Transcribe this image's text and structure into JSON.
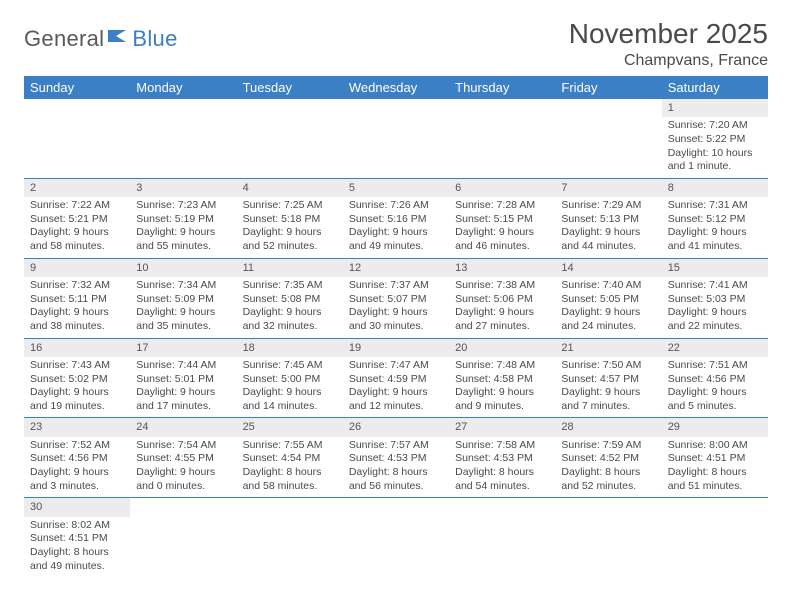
{
  "logo": {
    "part1": "General",
    "part2": "Blue"
  },
  "title": "November 2025",
  "location": "Champvans, France",
  "colors": {
    "header_bg": "#3b7fc4",
    "header_text": "#ffffff",
    "daynum_bg": "#ececec",
    "text": "#4a4a4a",
    "rule": "#3b7fc4"
  },
  "weekdays": [
    "Sunday",
    "Monday",
    "Tuesday",
    "Wednesday",
    "Thursday",
    "Friday",
    "Saturday"
  ],
  "weeks": [
    [
      null,
      null,
      null,
      null,
      null,
      null,
      {
        "n": "1",
        "sr": "7:20 AM",
        "ss": "5:22 PM",
        "dl": "10 hours and 1 minute."
      }
    ],
    [
      {
        "n": "2",
        "sr": "7:22 AM",
        "ss": "5:21 PM",
        "dl": "9 hours and 58 minutes."
      },
      {
        "n": "3",
        "sr": "7:23 AM",
        "ss": "5:19 PM",
        "dl": "9 hours and 55 minutes."
      },
      {
        "n": "4",
        "sr": "7:25 AM",
        "ss": "5:18 PM",
        "dl": "9 hours and 52 minutes."
      },
      {
        "n": "5",
        "sr": "7:26 AM",
        "ss": "5:16 PM",
        "dl": "9 hours and 49 minutes."
      },
      {
        "n": "6",
        "sr": "7:28 AM",
        "ss": "5:15 PM",
        "dl": "9 hours and 46 minutes."
      },
      {
        "n": "7",
        "sr": "7:29 AM",
        "ss": "5:13 PM",
        "dl": "9 hours and 44 minutes."
      },
      {
        "n": "8",
        "sr": "7:31 AM",
        "ss": "5:12 PM",
        "dl": "9 hours and 41 minutes."
      }
    ],
    [
      {
        "n": "9",
        "sr": "7:32 AM",
        "ss": "5:11 PM",
        "dl": "9 hours and 38 minutes."
      },
      {
        "n": "10",
        "sr": "7:34 AM",
        "ss": "5:09 PM",
        "dl": "9 hours and 35 minutes."
      },
      {
        "n": "11",
        "sr": "7:35 AM",
        "ss": "5:08 PM",
        "dl": "9 hours and 32 minutes."
      },
      {
        "n": "12",
        "sr": "7:37 AM",
        "ss": "5:07 PM",
        "dl": "9 hours and 30 minutes."
      },
      {
        "n": "13",
        "sr": "7:38 AM",
        "ss": "5:06 PM",
        "dl": "9 hours and 27 minutes."
      },
      {
        "n": "14",
        "sr": "7:40 AM",
        "ss": "5:05 PM",
        "dl": "9 hours and 24 minutes."
      },
      {
        "n": "15",
        "sr": "7:41 AM",
        "ss": "5:03 PM",
        "dl": "9 hours and 22 minutes."
      }
    ],
    [
      {
        "n": "16",
        "sr": "7:43 AM",
        "ss": "5:02 PM",
        "dl": "9 hours and 19 minutes."
      },
      {
        "n": "17",
        "sr": "7:44 AM",
        "ss": "5:01 PM",
        "dl": "9 hours and 17 minutes."
      },
      {
        "n": "18",
        "sr": "7:45 AM",
        "ss": "5:00 PM",
        "dl": "9 hours and 14 minutes."
      },
      {
        "n": "19",
        "sr": "7:47 AM",
        "ss": "4:59 PM",
        "dl": "9 hours and 12 minutes."
      },
      {
        "n": "20",
        "sr": "7:48 AM",
        "ss": "4:58 PM",
        "dl": "9 hours and 9 minutes."
      },
      {
        "n": "21",
        "sr": "7:50 AM",
        "ss": "4:57 PM",
        "dl": "9 hours and 7 minutes."
      },
      {
        "n": "22",
        "sr": "7:51 AM",
        "ss": "4:56 PM",
        "dl": "9 hours and 5 minutes."
      }
    ],
    [
      {
        "n": "23",
        "sr": "7:52 AM",
        "ss": "4:56 PM",
        "dl": "9 hours and 3 minutes."
      },
      {
        "n": "24",
        "sr": "7:54 AM",
        "ss": "4:55 PM",
        "dl": "9 hours and 0 minutes."
      },
      {
        "n": "25",
        "sr": "7:55 AM",
        "ss": "4:54 PM",
        "dl": "8 hours and 58 minutes."
      },
      {
        "n": "26",
        "sr": "7:57 AM",
        "ss": "4:53 PM",
        "dl": "8 hours and 56 minutes."
      },
      {
        "n": "27",
        "sr": "7:58 AM",
        "ss": "4:53 PM",
        "dl": "8 hours and 54 minutes."
      },
      {
        "n": "28",
        "sr": "7:59 AM",
        "ss": "4:52 PM",
        "dl": "8 hours and 52 minutes."
      },
      {
        "n": "29",
        "sr": "8:00 AM",
        "ss": "4:51 PM",
        "dl": "8 hours and 51 minutes."
      }
    ],
    [
      {
        "n": "30",
        "sr": "8:02 AM",
        "ss": "4:51 PM",
        "dl": "8 hours and 49 minutes."
      },
      null,
      null,
      null,
      null,
      null,
      null
    ]
  ],
  "labels": {
    "sunrise": "Sunrise: ",
    "sunset": "Sunset: ",
    "daylight": "Daylight: "
  }
}
